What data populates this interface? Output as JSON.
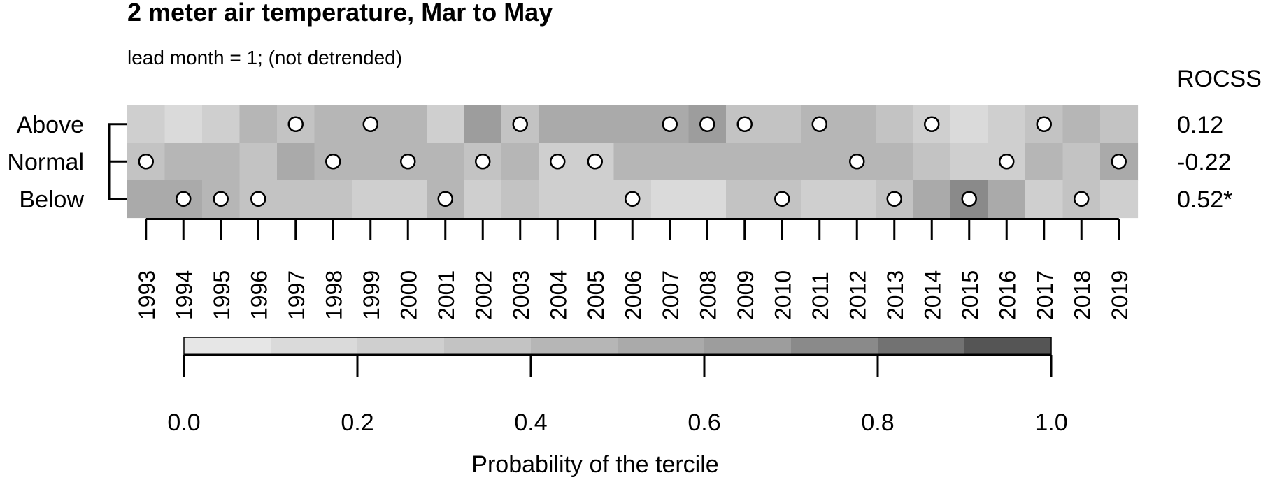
{
  "chart_data": {
    "type": "heatmap",
    "title": "2 meter air temperature, Mar to May",
    "subtitle": "lead month = 1; (not detrended)",
    "years": [
      "1993",
      "1994",
      "1995",
      "1996",
      "1997",
      "1998",
      "1999",
      "2000",
      "2001",
      "2002",
      "2003",
      "2004",
      "2005",
      "2006",
      "2007",
      "2008",
      "2009",
      "2010",
      "2011",
      "2012",
      "2013",
      "2014",
      "2015",
      "2016",
      "2017",
      "2018",
      "2019"
    ],
    "rows": [
      {
        "label": "Above",
        "rocss": "0.12",
        "probabilities": [
          0.2,
          0.1,
          0.2,
          0.4,
          0.3,
          0.4,
          0.4,
          0.4,
          0.2,
          0.6,
          0.3,
          0.5,
          0.5,
          0.5,
          0.5,
          0.6,
          0.3,
          0.3,
          0.4,
          0.4,
          0.3,
          0.2,
          0.1,
          0.2,
          0.3,
          0.4,
          0.3
        ],
        "observed": [
          false,
          false,
          false,
          false,
          true,
          false,
          true,
          false,
          false,
          false,
          true,
          false,
          false,
          false,
          true,
          true,
          true,
          false,
          true,
          false,
          false,
          true,
          false,
          false,
          true,
          false,
          false
        ]
      },
      {
        "label": "Normal",
        "rocss": "-0.22",
        "probabilities": [
          0.3,
          0.4,
          0.4,
          0.3,
          0.5,
          0.4,
          0.4,
          0.4,
          0.4,
          0.3,
          0.4,
          0.2,
          0.2,
          0.4,
          0.4,
          0.4,
          0.4,
          0.4,
          0.4,
          0.4,
          0.4,
          0.3,
          0.2,
          0.2,
          0.4,
          0.3,
          0.5
        ],
        "observed": [
          true,
          false,
          false,
          false,
          false,
          true,
          false,
          true,
          false,
          true,
          false,
          true,
          true,
          false,
          false,
          false,
          false,
          false,
          false,
          true,
          false,
          false,
          false,
          true,
          false,
          false,
          true
        ]
      },
      {
        "label": "Below",
        "rocss": "0.52*",
        "probabilities": [
          0.5,
          0.5,
          0.4,
          0.3,
          0.3,
          0.3,
          0.2,
          0.2,
          0.4,
          0.2,
          0.3,
          0.2,
          0.2,
          0.2,
          0.1,
          0.1,
          0.3,
          0.3,
          0.2,
          0.2,
          0.3,
          0.5,
          0.7,
          0.5,
          0.2,
          0.3,
          0.2
        ],
        "observed": [
          false,
          true,
          true,
          true,
          false,
          false,
          false,
          false,
          true,
          false,
          false,
          false,
          false,
          true,
          false,
          false,
          false,
          true,
          false,
          false,
          true,
          false,
          true,
          false,
          false,
          true,
          false
        ]
      }
    ],
    "rocss_header": "ROCSS",
    "colorbar": {
      "breaks": [
        0.0,
        0.1,
        0.2,
        0.3,
        0.4,
        0.5,
        0.6,
        0.7,
        0.8,
        0.9,
        1.0
      ],
      "colors": [
        "#e6e6e6",
        "#dadada",
        "#cfcfcf",
        "#c3c3c3",
        "#b6b6b6",
        "#aaaaaa",
        "#9d9d9d",
        "#8a8a8a",
        "#727272",
        "#555555"
      ],
      "tick_labels": [
        "0.0",
        "0.2",
        "0.4",
        "0.6",
        "0.8",
        "1.0"
      ],
      "label": "Probability of the tercile"
    }
  }
}
